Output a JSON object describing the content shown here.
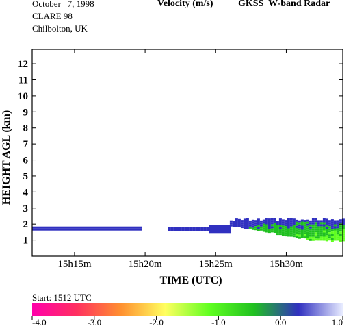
{
  "header": {
    "date": "October   7, 1998",
    "campaign": "CLARE 98",
    "location": "Chilbolton, UK",
    "variable": "Velocity (m/s)",
    "instrument": "GKSS  W-band Radar"
  },
  "start_label": "Start:  1512 UTC",
  "chart_data": {
    "type": "heatmap",
    "xlabel": "TIME (UTC)",
    "ylabel": "HEIGHT AGL (km)",
    "x_ticks": [
      {
        "time": "15h15m",
        "label": "15h15m"
      },
      {
        "time": "15h20m",
        "label": "15h20m"
      },
      {
        "time": "15h25m",
        "label": "15h25m"
      },
      {
        "time": "15h30m",
        "label": "15h30m"
      }
    ],
    "xlim_minutes_after_1512": [
      0,
      22.0
    ],
    "ylim": [
      0,
      12.9
    ],
    "y_ticks": [
      1,
      2,
      3,
      4,
      5,
      6,
      7,
      8,
      9,
      10,
      11,
      12
    ],
    "colorbar": {
      "min": -4.0,
      "max": 1.0,
      "ticks": [
        "-4.0",
        "-3.0",
        "-2.0",
        "-1.0",
        "0.0",
        "1.0"
      ],
      "tick_values": [
        -4.0,
        -3.0,
        -2.0,
        -1.0,
        0.0,
        1.0
      ],
      "colors": [
        "#ff00aa",
        "#ff3060",
        "#ff9030",
        "#ffff60",
        "#60ff20",
        "#20c020",
        "#3030c0",
        "#e8ecff"
      ]
    },
    "echo_layers": [
      {
        "start_min": 0.0,
        "end_min": 7.6,
        "base_km": 1.65,
        "top_km": 1.85,
        "velocity_ms": 0.3
      },
      {
        "start_min": 9.6,
        "end_min": 12.5,
        "base_km": 1.65,
        "top_km": 1.8,
        "velocity_ms": 0.3
      },
      {
        "start_min": 12.5,
        "end_min": 14.0,
        "base_km": 1.55,
        "top_km": 1.95,
        "velocity_ms": 0.1
      },
      {
        "start_min": 14.0,
        "end_min": 22.0,
        "base_km": 1.0,
        "top_km": 2.3,
        "velocity_ms": -0.9
      }
    ]
  }
}
